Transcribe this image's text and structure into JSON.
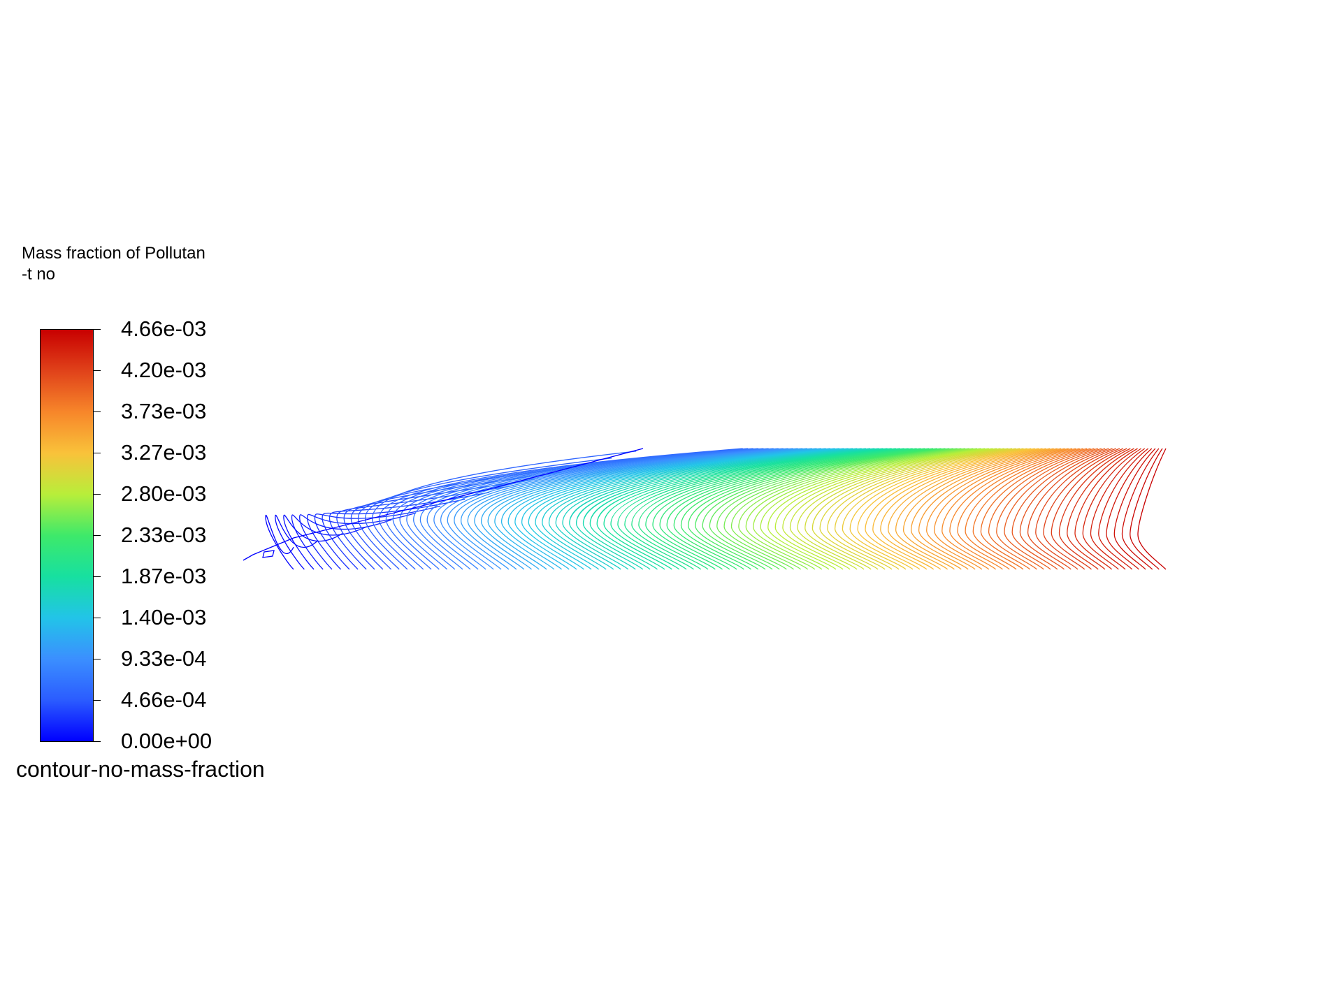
{
  "legend": {
    "title_line1": "Mass fraction of Pollutan",
    "title_line2": "-t no",
    "field_name": "contour-no-mass-fraction",
    "ticks": [
      "4.66e-03",
      "4.20e-03",
      "3.73e-03",
      "3.27e-03",
      "2.80e-03",
      "2.33e-03",
      "1.87e-03",
      "1.40e-03",
      "9.33e-04",
      "4.66e-04",
      "0.00e+00"
    ],
    "min_color": "#0000ff",
    "max_color": "#c80000"
  },
  "plot": {
    "type": "contour-lines",
    "colormap": "rainbow",
    "min_value": 0.0,
    "max_value": 0.00466
  }
}
